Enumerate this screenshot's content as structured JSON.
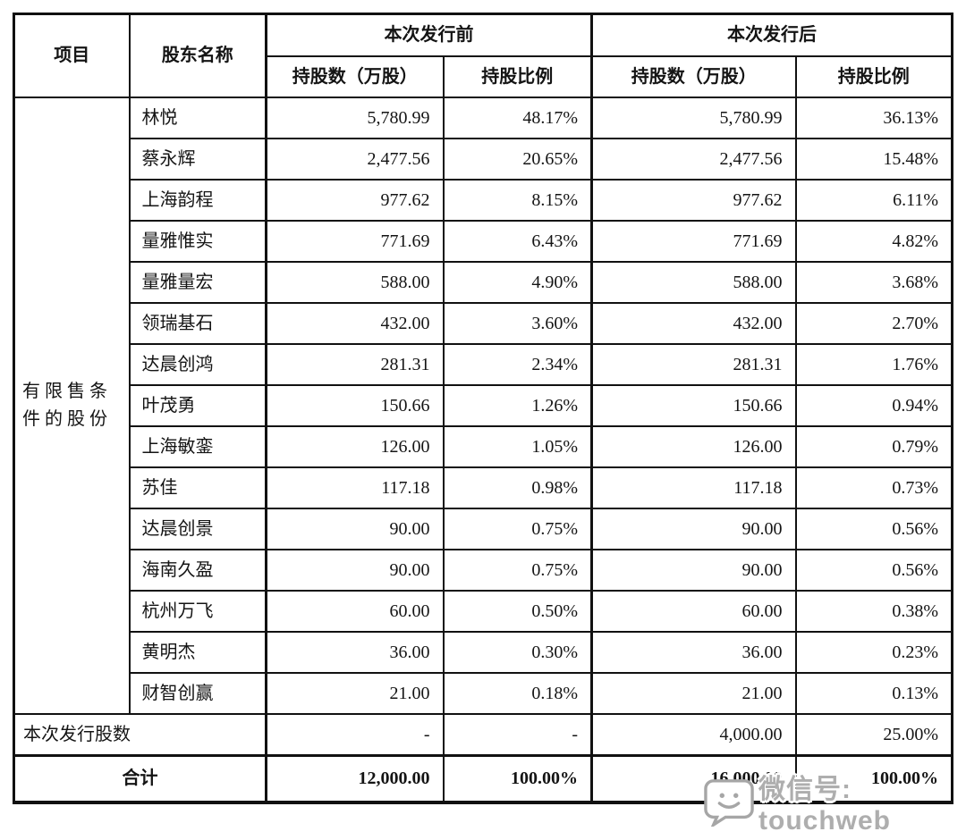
{
  "table": {
    "header": {
      "col_item": "项目",
      "col_shareholder": "股东名称",
      "group_pre": "本次发行前",
      "group_post": "本次发行后",
      "col_shares": "持股数（万股）",
      "col_ratio": "持股比例"
    },
    "item_lines": [
      "有限售条",
      "件的股份"
    ],
    "rows": [
      {
        "name": "林悦",
        "pre_shares": "5,780.99",
        "pre_ratio": "48.17%",
        "post_shares": "5,780.99",
        "post_ratio": "36.13%"
      },
      {
        "name": "蔡永辉",
        "pre_shares": "2,477.56",
        "pre_ratio": "20.65%",
        "post_shares": "2,477.56",
        "post_ratio": "15.48%"
      },
      {
        "name": "上海韵程",
        "pre_shares": "977.62",
        "pre_ratio": "8.15%",
        "post_shares": "977.62",
        "post_ratio": "6.11%"
      },
      {
        "name": "量雅惟实",
        "pre_shares": "771.69",
        "pre_ratio": "6.43%",
        "post_shares": "771.69",
        "post_ratio": "4.82%"
      },
      {
        "name": "量雅量宏",
        "pre_shares": "588.00",
        "pre_ratio": "4.90%",
        "post_shares": "588.00",
        "post_ratio": "3.68%"
      },
      {
        "name": "领瑞基石",
        "pre_shares": "432.00",
        "pre_ratio": "3.60%",
        "post_shares": "432.00",
        "post_ratio": "2.70%"
      },
      {
        "name": "达晨创鸿",
        "pre_shares": "281.31",
        "pre_ratio": "2.34%",
        "post_shares": "281.31",
        "post_ratio": "1.76%"
      },
      {
        "name": "叶茂勇",
        "pre_shares": "150.66",
        "pre_ratio": "1.26%",
        "post_shares": "150.66",
        "post_ratio": "0.94%"
      },
      {
        "name": "上海敏銮",
        "pre_shares": "126.00",
        "pre_ratio": "1.05%",
        "post_shares": "126.00",
        "post_ratio": "0.79%"
      },
      {
        "name": "苏佳",
        "pre_shares": "117.18",
        "pre_ratio": "0.98%",
        "post_shares": "117.18",
        "post_ratio": "0.73%"
      },
      {
        "name": "达晨创景",
        "pre_shares": "90.00",
        "pre_ratio": "0.75%",
        "post_shares": "90.00",
        "post_ratio": "0.56%"
      },
      {
        "name": "海南久盈",
        "pre_shares": "90.00",
        "pre_ratio": "0.75%",
        "post_shares": "90.00",
        "post_ratio": "0.56%"
      },
      {
        "name": "杭州万飞",
        "pre_shares": "60.00",
        "pre_ratio": "0.50%",
        "post_shares": "60.00",
        "post_ratio": "0.38%"
      },
      {
        "name": "黄明杰",
        "pre_shares": "36.00",
        "pre_ratio": "0.30%",
        "post_shares": "36.00",
        "post_ratio": "0.23%"
      },
      {
        "name": "财智创赢",
        "pre_shares": "21.00",
        "pre_ratio": "0.18%",
        "post_shares": "21.00",
        "post_ratio": "0.13%"
      }
    ],
    "issue_row": {
      "label": "本次发行股数",
      "pre_shares": "-",
      "pre_ratio": "-",
      "post_shares": "4,000.00",
      "post_ratio": "25.00%"
    },
    "total_row": {
      "label": "合计",
      "pre_shares": "12,000.00",
      "pre_ratio": "100.00%",
      "post_shares": "16,000.00",
      "post_ratio": "100.00%"
    }
  },
  "watermark": {
    "text": "微信号: touchweb",
    "icon": "wechat-chat-icon",
    "color": "#aeaeae"
  }
}
